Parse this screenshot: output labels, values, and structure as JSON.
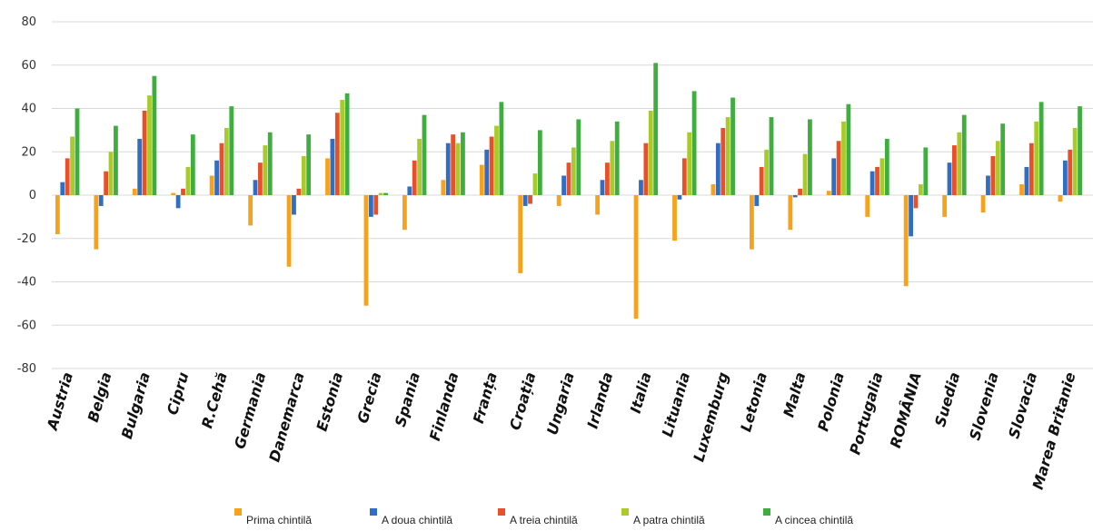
{
  "chart_data": {
    "type": "bar",
    "title": "",
    "xlabel": "",
    "ylabel": "",
    "ylim": [
      -80,
      80
    ],
    "yticks": [
      80,
      60,
      40,
      20,
      0,
      -20,
      -40,
      -60,
      -80
    ],
    "grid": true,
    "legend_position": "bottom",
    "categories": [
      "Austria",
      "Belgia",
      "Bulgaria",
      "Cipru",
      "R.Cehă",
      "Germania",
      "Danemarca",
      "Estonia",
      "Grecia",
      "Spania",
      "Finlanda",
      "Franța",
      "Croația",
      "Ungaria",
      "Irlanda",
      "Italia",
      "Lituania",
      "Luxemburg",
      "Letonia",
      "Malta",
      "Polonia",
      "Portugalia",
      "ROMÂNIA",
      "Suedia",
      "Slovenia",
      "Slovacia",
      "Marea Britanie"
    ],
    "series": [
      {
        "name": "Prima chintilă",
        "color": "#F7A21B",
        "values": [
          -18,
          -25,
          3,
          1,
          9,
          -14,
          -33,
          17,
          -51,
          -16,
          7,
          14,
          -36,
          -5,
          -9,
          -57,
          -21,
          5,
          -25,
          -16,
          2,
          -10,
          -42,
          -10,
          -8,
          5,
          -3
        ]
      },
      {
        "name": "A doua chintilă",
        "color": "#2F6EC2",
        "values": [
          6,
          -5,
          26,
          -6,
          16,
          7,
          -9,
          26,
          -10,
          4,
          24,
          21,
          -5,
          9,
          7,
          7,
          -2,
          24,
          -5,
          -1,
          17,
          11,
          -19,
          15,
          9,
          13,
          16
        ]
      },
      {
        "name": "A treia chintilă",
        "color": "#E8502A",
        "values": [
          17,
          11,
          39,
          3,
          24,
          15,
          3,
          38,
          -9,
          16,
          28,
          27,
          -4,
          15,
          15,
          24,
          17,
          31,
          13,
          3,
          25,
          13,
          -6,
          23,
          18,
          24,
          21
        ]
      },
      {
        "name": "A patra chintilă",
        "color": "#A8CB2A",
        "values": [
          27,
          20,
          46,
          13,
          31,
          23,
          18,
          44,
          1,
          26,
          24,
          32,
          10,
          22,
          25,
          39,
          29,
          36,
          21,
          19,
          34,
          17,
          5,
          29,
          25,
          34,
          31
        ]
      },
      {
        "name": "A cincea chintilă",
        "color": "#3FAE3F",
        "values": [
          40,
          32,
          55,
          28,
          41,
          29,
          28,
          47,
          1,
          37,
          29,
          43,
          30,
          35,
          34,
          61,
          48,
          45,
          36,
          35,
          42,
          26,
          22,
          37,
          33,
          43,
          41
        ]
      }
    ]
  }
}
